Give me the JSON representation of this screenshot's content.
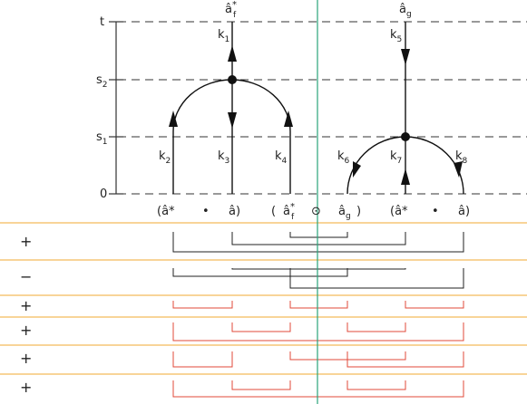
{
  "axis": [
    {
      "text": "t"
    },
    {
      "base": "s",
      "sub": "2"
    },
    {
      "base": "s",
      "sub": "1"
    },
    {
      "text": "0"
    }
  ],
  "top": [
    {
      "base": "â",
      "sub": "f",
      "sup": "*"
    },
    {
      "base": "â",
      "sub": "g"
    }
  ],
  "momenta": [
    {
      "base": "k",
      "sub": "1"
    },
    {
      "base": "k",
      "sub": "2"
    },
    {
      "base": "k",
      "sub": "3"
    },
    {
      "base": "k",
      "sub": "4"
    },
    {
      "base": "k",
      "sub": "5"
    },
    {
      "base": "k",
      "sub": "6"
    },
    {
      "base": "k",
      "sub": "7"
    },
    {
      "base": "k",
      "sub": "8"
    }
  ],
  "bottom": [
    {
      "text": "(â*"
    },
    {
      "text": "•"
    },
    {
      "text": "â)"
    },
    {
      "text": "("
    },
    {
      "base": "â",
      "sub": "f",
      "sup": "*"
    },
    {
      "text": "⊙"
    },
    {
      "base": "â",
      "sub": "g"
    },
    {
      "text": ")"
    },
    {
      "text": "(â*"
    },
    {
      "text": "•"
    },
    {
      "text": "â)"
    }
  ],
  "signs": [
    "+",
    "−",
    "+",
    "+",
    "+",
    "+"
  ]
}
